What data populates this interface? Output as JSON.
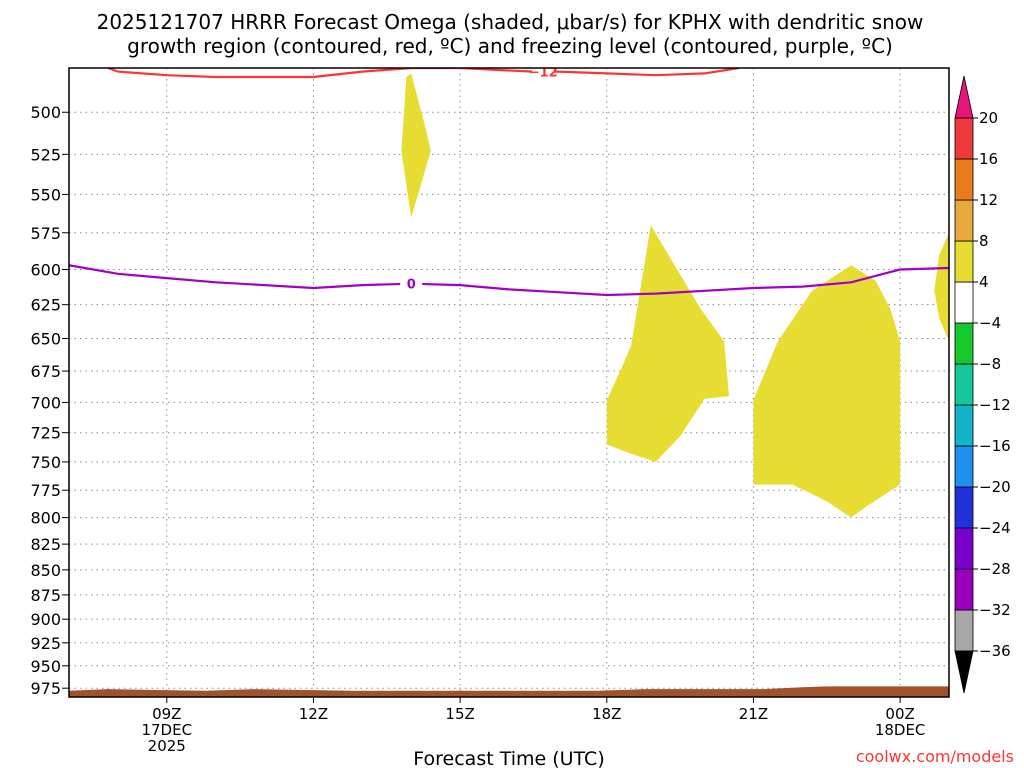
{
  "title_line1": "2025121707 HRRR Forecast Omega (shaded, μbar/s) for KPHX with dendritic snow",
  "title_line2": "growth region (contoured, red, ºC) and freezing level (contoured, purple, ºC)",
  "credit": "coolwx.com/models",
  "chart_data": {
    "type": "contour",
    "xlabel": "Forecast Time (UTC)",
    "ylabel": "",
    "x_range_hours": [
      7,
      25
    ],
    "y_range_mb": [
      475,
      985
    ],
    "y_scale": "log",
    "grid": true,
    "y_ticks": [
      500,
      525,
      550,
      575,
      600,
      625,
      650,
      675,
      700,
      725,
      750,
      775,
      800,
      825,
      850,
      875,
      900,
      925,
      950,
      975
    ],
    "x_ticks": [
      {
        "hour": 9,
        "lines": [
          "09Z",
          "17DEC",
          "2025"
        ]
      },
      {
        "hour": 12,
        "lines": [
          "12Z"
        ]
      },
      {
        "hour": 15,
        "lines": [
          "15Z"
        ]
      },
      {
        "hour": 18,
        "lines": [
          "18Z"
        ]
      },
      {
        "hour": 21,
        "lines": [
          "21Z"
        ]
      },
      {
        "hour": 24,
        "lines": [
          "00Z",
          "18DEC"
        ]
      }
    ],
    "omega_shading": [
      {
        "color": "#e6dc32",
        "points": [
          [
            14.0,
            478
          ],
          [
            14.3,
            510
          ],
          [
            14.4,
            523
          ],
          [
            14.0,
            565
          ],
          [
            13.8,
            523
          ],
          [
            13.9,
            480
          ]
        ]
      },
      {
        "color": "#e6dc32",
        "points": [
          [
            18.9,
            570
          ],
          [
            19.9,
            627
          ],
          [
            20.4,
            652
          ],
          [
            20.5,
            695
          ],
          [
            20.0,
            697
          ],
          [
            19.5,
            728
          ],
          [
            19.0,
            750
          ],
          [
            18.5,
            743
          ],
          [
            18.0,
            735
          ],
          [
            18.0,
            698
          ],
          [
            18.3,
            673
          ],
          [
            18.5,
            655
          ]
        ]
      },
      {
        "color": "#e6dc32",
        "points": [
          [
            21.0,
            698
          ],
          [
            21.5,
            652
          ],
          [
            22.2,
            615
          ],
          [
            23.0,
            597
          ],
          [
            23.5,
            608
          ],
          [
            23.8,
            628
          ],
          [
            24.0,
            652
          ],
          [
            24.0,
            770
          ],
          [
            23.3,
            790
          ],
          [
            23.0,
            800
          ],
          [
            22.5,
            785
          ],
          [
            21.8,
            770
          ],
          [
            21.0,
            770
          ]
        ]
      },
      {
        "color": "#e6dc32",
        "points": [
          [
            25.0,
            575
          ],
          [
            24.8,
            590
          ],
          [
            24.7,
            615
          ],
          [
            24.8,
            635
          ],
          [
            25.0,
            652
          ]
        ]
      },
      {
        "color": "#a0522d",
        "points": [
          [
            7.0,
            978
          ],
          [
            7.8,
            976
          ],
          [
            8.8,
            977
          ],
          [
            9.8,
            978
          ],
          [
            10.8,
            976
          ],
          [
            11.8,
            977
          ],
          [
            12.8,
            978
          ],
          [
            13.8,
            978
          ],
          [
            14.8,
            978
          ],
          [
            15.8,
            978
          ],
          [
            16.8,
            978
          ],
          [
            17.8,
            978
          ],
          [
            18.8,
            976
          ],
          [
            19.8,
            976
          ],
          [
            20.8,
            976
          ],
          [
            21.2,
            976
          ],
          [
            22.0,
            974
          ],
          [
            22.5,
            973
          ],
          [
            23.3,
            973
          ],
          [
            24.0,
            973
          ],
          [
            24.5,
            973
          ],
          [
            25.0,
            973
          ],
          [
            25.0,
            985
          ],
          [
            7.0,
            985
          ]
        ]
      }
    ],
    "contours": [
      {
        "name": "dendritic snow growth region",
        "color": "#ff3333",
        "label": "−12",
        "label_hour": 16.7,
        "points": [
          [
            7.8,
            475
          ],
          [
            8.0,
            477
          ],
          [
            9.0,
            479
          ],
          [
            10.0,
            480
          ],
          [
            11.0,
            480
          ],
          [
            12.0,
            480
          ],
          [
            13.0,
            477
          ],
          [
            14.0,
            475
          ],
          [
            15.0,
            475
          ],
          [
            15.7,
            476
          ],
          [
            16.5,
            477
          ],
          [
            17.0,
            477
          ],
          [
            18.0,
            478
          ],
          [
            19.0,
            479
          ],
          [
            20.0,
            478
          ],
          [
            20.7,
            475
          ]
        ]
      },
      {
        "name": "freezing level",
        "color": "#a000c8",
        "label": "0",
        "label_hour": 14.0,
        "points": [
          [
            7.0,
            597
          ],
          [
            8.0,
            603
          ],
          [
            9.0,
            606
          ],
          [
            10.0,
            609
          ],
          [
            11.0,
            611
          ],
          [
            12.0,
            613
          ],
          [
            13.0,
            611
          ],
          [
            14.0,
            610
          ],
          [
            15.0,
            611
          ],
          [
            16.0,
            614
          ],
          [
            17.0,
            616
          ],
          [
            18.0,
            618
          ],
          [
            19.0,
            617
          ],
          [
            20.0,
            615
          ],
          [
            21.0,
            613
          ],
          [
            22.0,
            612
          ],
          [
            23.0,
            609
          ],
          [
            24.0,
            600
          ],
          [
            25.0,
            599
          ]
        ]
      }
    ],
    "colorbar": {
      "levels": [
        -36,
        -32,
        -28,
        -24,
        -20,
        -16,
        -12,
        -8,
        -4,
        4,
        8,
        12,
        16,
        20
      ],
      "labels": [
        "20",
        "16",
        "12",
        "8",
        "4",
        "−4",
        "−8",
        "−12",
        "−16",
        "−20",
        "−24",
        "−28",
        "−32",
        "−36"
      ],
      "colors": [
        "#a8a8a8",
        "#9900bb",
        "#7a00cc",
        "#2232d8",
        "#1e90f0",
        "#14b4c8",
        "#14c89a",
        "#14c82d",
        "#ffffff",
        "#e6dc32",
        "#e8a83c",
        "#e87d1e",
        "#ee3a3a"
      ],
      "under_color": "#000000",
      "over_color": "#e8147a"
    }
  }
}
